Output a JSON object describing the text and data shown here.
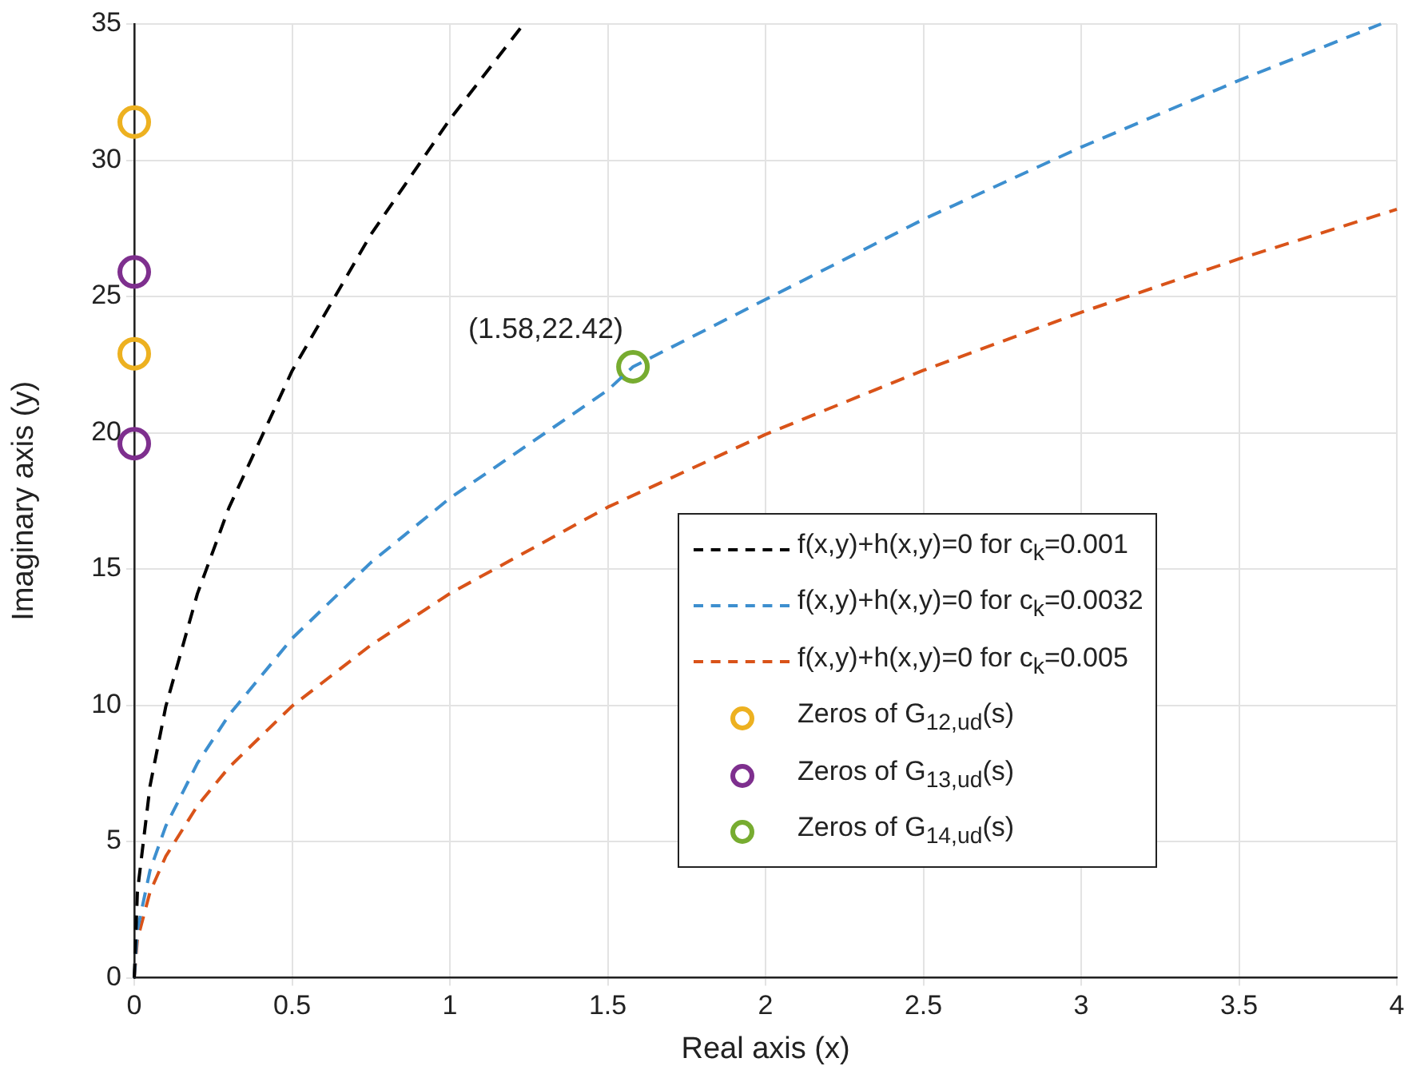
{
  "chart_data": {
    "type": "line",
    "xlabel": "Real axis (x)",
    "ylabel": "Imaginary axis (y)",
    "xlim": [
      0,
      4
    ],
    "xticks": [
      0,
      0.5,
      1,
      1.5,
      2,
      2.5,
      3,
      3.5,
      4
    ],
    "ylim": [
      0,
      35
    ],
    "yticks": [
      0,
      5,
      10,
      15,
      20,
      25,
      30,
      35
    ],
    "grid": true,
    "legend": "right",
    "line_style": "dashed",
    "annotations": [
      {
        "text": "(1.58,22.42)",
        "x": 1.58,
        "y": 22.42
      }
    ],
    "series": [
      {
        "name": "f(x,y)+h(x,y)=0 for c$_{k}$=0.001",
        "type": "line",
        "color": "#000000",
        "marker": "none",
        "x": [
          0,
          0.01,
          0.05,
          0.1,
          0.2,
          0.3,
          0.5,
          0.75,
          1,
          1.234
        ],
        "values": [
          0,
          3.15,
          7.04,
          9.96,
          14.09,
          17.25,
          22.27,
          27.28,
          31.5,
          35.0
        ]
      },
      {
        "name": "f(x,y)+h(x,y)=0 for c$_{k}$=0.0032",
        "type": "line",
        "color": "#3d8fcf",
        "marker": "none",
        "x": [
          0,
          0.01,
          0.05,
          0.1,
          0.2,
          0.3,
          0.5,
          0.75,
          1,
          1.5,
          1.58,
          2,
          2.5,
          3,
          3.5,
          3.95
        ],
        "values": [
          0,
          1.76,
          3.94,
          5.57,
          7.87,
          9.64,
          12.45,
          15.24,
          17.6,
          21.56,
          22.42,
          24.89,
          27.83,
          30.48,
          32.93,
          35.0
        ]
      },
      {
        "name": "f(x,y)+h(x,y)=0 for c$_{k}$=0.005",
        "type": "line",
        "color": "#d95319",
        "marker": "none",
        "x": [
          0,
          0.01,
          0.05,
          0.1,
          0.2,
          0.3,
          0.5,
          0.75,
          1,
          1.5,
          2,
          2.5,
          3,
          3.5,
          4
        ],
        "values": [
          0,
          1.41,
          3.15,
          4.46,
          6.31,
          7.72,
          9.97,
          12.21,
          14.1,
          17.27,
          19.94,
          22.29,
          24.42,
          26.38,
          28.2
        ]
      },
      {
        "name": "Zeros of G$_{12,ud}$(s)",
        "type": "scatter",
        "color": "#edb120",
        "marker": "circle",
        "x": [
          0,
          0
        ],
        "values": [
          31.4,
          22.9
        ]
      },
      {
        "name": "Zeros of G$_{13,ud}$(s)",
        "type": "scatter",
        "color": "#7e2f8e",
        "marker": "circle",
        "x": [
          0,
          0
        ],
        "values": [
          25.9,
          19.6
        ]
      },
      {
        "name": "Zeros of G$_{14,ud}$(s)",
        "type": "scatter",
        "color": "#77ac30",
        "marker": "circle",
        "x": [
          1.58
        ],
        "values": [
          22.42
        ]
      }
    ]
  }
}
